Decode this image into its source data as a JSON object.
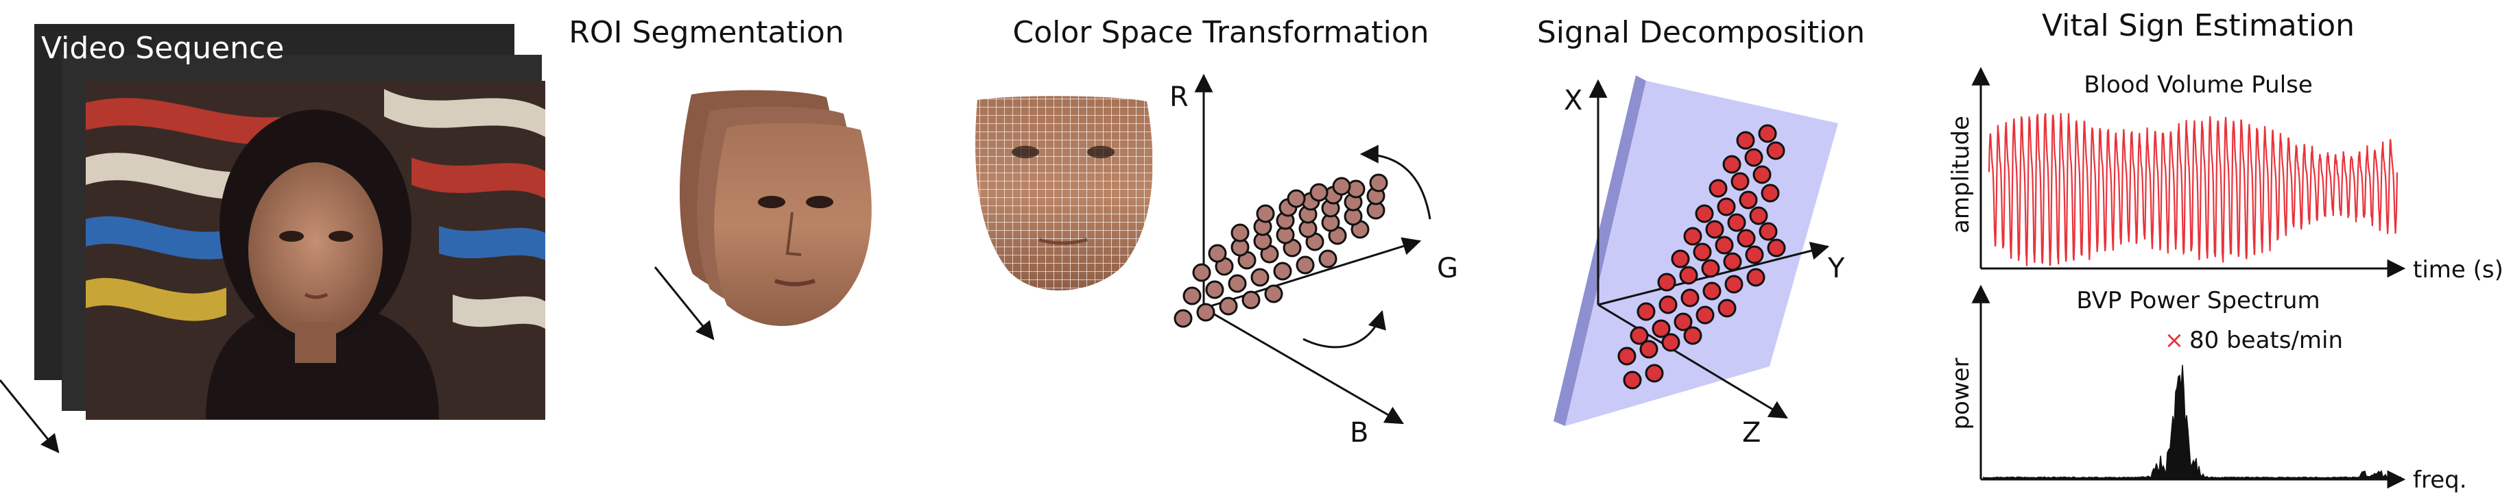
{
  "stages": {
    "video": {
      "title": "Video Sequence"
    },
    "roi": {
      "title": "ROI Segmentation"
    },
    "color": {
      "title": "Color Space Transformation",
      "axis_r": "R",
      "axis_g": "G",
      "axis_b": "B"
    },
    "decomp": {
      "title": "Signal Decomposition",
      "axis_x": "X",
      "axis_y": "Y",
      "axis_z": "Z"
    },
    "vital": {
      "title": "Vital Sign Estimation"
    }
  },
  "chart_data": [
    {
      "type": "line",
      "title": "Blood Volume Pulse",
      "xlabel": "time (s)",
      "ylabel": "amplitude",
      "series_color": "#e8333b",
      "cycles": 52
    },
    {
      "type": "area",
      "title": "BVP Power Spectrum",
      "xlabel": "freq.",
      "ylabel": "power",
      "peak": {
        "value": 80,
        "unit": "beats/min",
        "label": "80 beats/min",
        "marker": "×"
      },
      "marker_color": "#e8333b"
    }
  ],
  "colors": {
    "dot_brown": "#b07a72",
    "dot_red": "#d9343a",
    "plane": "#c9caf7",
    "plane_edge": "#8d8fd0"
  }
}
